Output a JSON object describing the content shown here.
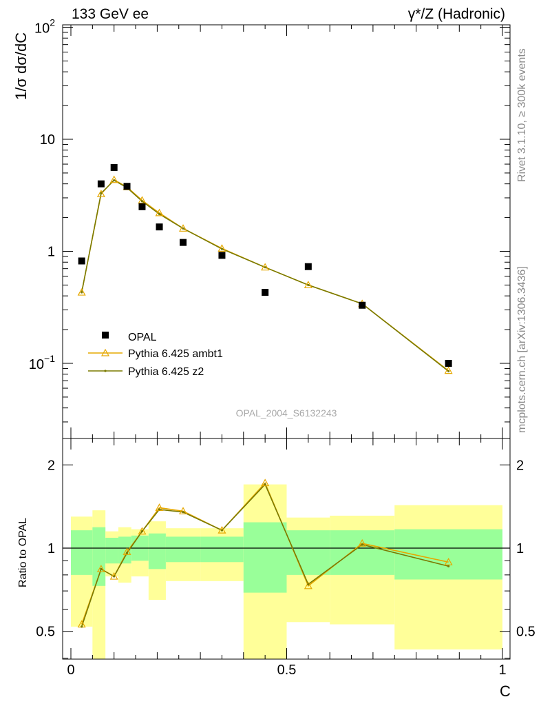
{
  "header": {
    "left_title": "133 GeV ee",
    "right_title": "γ*/Z (Hadronic)"
  },
  "side_labels": {
    "rivet": "Rivet 3.1.10, ≥ 300k events",
    "mcplots": "mcplots.cern.ch [arXiv:1306.3436]"
  },
  "watermark": "OPAL_2004_S6132243",
  "colors": {
    "data": "#000000",
    "ambt1": "#e6a800",
    "z2": "#7a7a00",
    "band_inner": "#99ff99",
    "band_outer": "#ffff99"
  },
  "chart_data": [
    {
      "type": "scatter",
      "ylabel": "1/σ dσ/dC",
      "yscale": "log",
      "ylim": [
        0.025,
        120
      ],
      "xlim": [
        -0.02,
        1.02
      ],
      "y_tick_labels": [
        "10^-1",
        "1",
        "10",
        "10^2"
      ],
      "legend_position": "bottom-left",
      "legend": [
        "OPAL",
        "Pythia 6.425 ambt1",
        "Pythia 6.425 z2"
      ],
      "series": [
        {
          "name": "OPAL",
          "marker": "square",
          "x": [
            0.025,
            0.07,
            0.1,
            0.13,
            0.165,
            0.205,
            0.26,
            0.35,
            0.45,
            0.55,
            0.675,
            0.875
          ],
          "y": [
            0.82,
            4.0,
            5.6,
            3.8,
            2.5,
            1.65,
            1.2,
            0.92,
            0.43,
            0.73,
            0.33,
            0.1
          ]
        },
        {
          "name": "Pythia 6.425 ambt1",
          "marker": "triangle",
          "x": [
            0.025,
            0.07,
            0.1,
            0.13,
            0.165,
            0.205,
            0.26,
            0.35,
            0.45,
            0.55,
            0.675,
            0.875
          ],
          "y": [
            0.43,
            3.25,
            4.35,
            3.75,
            2.85,
            2.2,
            1.6,
            1.06,
            0.72,
            0.5,
            0.34,
            0.086
          ]
        },
        {
          "name": "Pythia 6.425 z2",
          "marker": "dot",
          "x": [
            0.025,
            0.07,
            0.1,
            0.13,
            0.165,
            0.205,
            0.26,
            0.35,
            0.45,
            0.55,
            0.675,
            0.875
          ],
          "y": [
            0.43,
            3.3,
            4.3,
            3.7,
            2.8,
            2.15,
            1.6,
            1.05,
            0.72,
            0.5,
            0.34,
            0.085
          ]
        }
      ]
    },
    {
      "type": "line",
      "ylabel": "Ratio to OPAL",
      "xlabel": "C",
      "ylim": [
        0.35,
        2.3
      ],
      "xlim": [
        -0.02,
        1.02
      ],
      "y_tick_labels": [
        "0.5",
        "1",
        "2"
      ],
      "x_tick_labels": [
        "0",
        "0.5",
        "1"
      ],
      "reference_line": 1.0,
      "bands": [
        {
          "x0": 0.0,
          "x1": 0.05,
          "inner": [
            0.8,
            1.16
          ],
          "outer": [
            0.52,
            1.3
          ]
        },
        {
          "x0": 0.05,
          "x1": 0.08,
          "inner": [
            0.73,
            1.19
          ],
          "outer": [
            0.35,
            1.37
          ]
        },
        {
          "x0": 0.08,
          "x1": 0.11,
          "inner": [
            0.88,
            1.09
          ],
          "outer": [
            0.79,
            1.15
          ]
        },
        {
          "x0": 0.11,
          "x1": 0.14,
          "inner": [
            0.88,
            1.1
          ],
          "outer": [
            0.75,
            1.19
          ]
        },
        {
          "x0": 0.14,
          "x1": 0.18,
          "inner": [
            0.9,
            1.11
          ],
          "outer": [
            0.79,
            1.17
          ]
        },
        {
          "x0": 0.18,
          "x1": 0.22,
          "inner": [
            0.84,
            1.13
          ],
          "outer": [
            0.65,
            1.25
          ]
        },
        {
          "x0": 0.22,
          "x1": 0.3,
          "inner": [
            0.89,
            1.1
          ],
          "outer": [
            0.76,
            1.18
          ]
        },
        {
          "x0": 0.3,
          "x1": 0.4,
          "inner": [
            0.89,
            1.1
          ],
          "outer": [
            0.76,
            1.18
          ]
        },
        {
          "x0": 0.4,
          "x1": 0.5,
          "inner": [
            0.69,
            1.24
          ],
          "outer": [
            0.35,
            1.7
          ]
        },
        {
          "x0": 0.5,
          "x1": 0.6,
          "inner": [
            0.8,
            1.16
          ],
          "outer": [
            0.54,
            1.29
          ]
        },
        {
          "x0": 0.6,
          "x1": 0.75,
          "inner": [
            0.8,
            1.16
          ],
          "outer": [
            0.53,
            1.31
          ]
        },
        {
          "x0": 0.75,
          "x1": 1.0,
          "inner": [
            0.77,
            1.17
          ],
          "outer": [
            0.43,
            1.43
          ]
        }
      ],
      "series": [
        {
          "name": "Pythia 6.425 ambt1",
          "x": [
            0.025,
            0.07,
            0.1,
            0.13,
            0.165,
            0.205,
            0.26,
            0.35,
            0.45,
            0.55,
            0.675,
            0.875
          ],
          "values": [
            0.53,
            0.84,
            0.79,
            0.97,
            1.15,
            1.4,
            1.36,
            1.16,
            1.72,
            0.73,
            1.04,
            0.89
          ]
        },
        {
          "name": "Pythia 6.425 z2",
          "x": [
            0.025,
            0.07,
            0.1,
            0.13,
            0.165,
            0.205,
            0.26,
            0.35,
            0.45,
            0.55,
            0.675,
            0.875
          ],
          "values": [
            0.52,
            0.84,
            0.79,
            0.96,
            1.15,
            1.38,
            1.35,
            1.16,
            1.7,
            0.74,
            1.03,
            0.86
          ]
        }
      ]
    }
  ]
}
